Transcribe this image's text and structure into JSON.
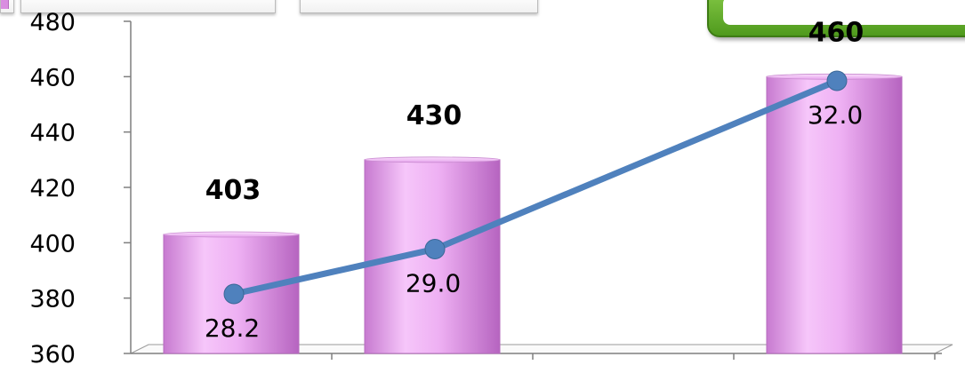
{
  "chart_data": {
    "type": "bar",
    "categories": [
      "",
      "",
      "",
      ""
    ],
    "values": [
      403,
      430,
      null,
      460
    ],
    "bar_labels": [
      "403",
      "430",
      "",
      "460"
    ],
    "ylim": [
      360,
      480
    ],
    "yticks": [
      "360",
      "380",
      "400",
      "420",
      "440",
      "460",
      "480"
    ],
    "line_series": {
      "values": [
        28.2,
        29.0,
        null,
        32.0
      ],
      "labels": [
        "28.2",
        "29.0",
        "",
        "32.0"
      ],
      "color": "#4f81bd"
    },
    "bar_color": "#e9a6ef",
    "accent_green": "#5da82a",
    "grid": false
  }
}
